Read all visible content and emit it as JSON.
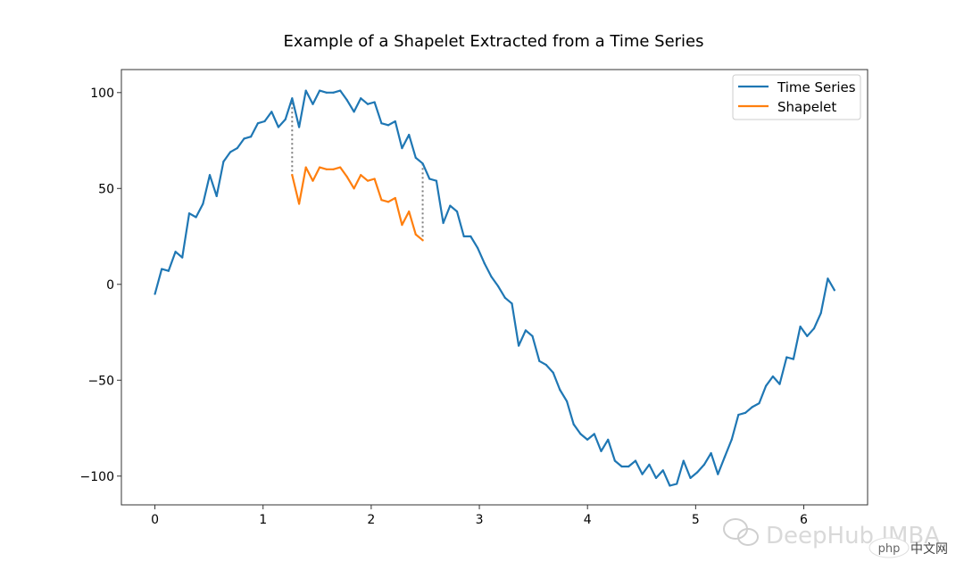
{
  "chart_data": {
    "type": "line",
    "title": "Example of a Shapelet Extracted from a Time Series",
    "xlabel": "",
    "ylabel": "",
    "xlim": [
      -0.31,
      6.59
    ],
    "ylim": [
      -115,
      112
    ],
    "xticks": [
      0,
      1,
      2,
      3,
      4,
      5,
      6
    ],
    "yticks": [
      100,
      50,
      0,
      -50,
      -100
    ],
    "xtick_labels": [
      "0",
      "1",
      "2",
      "3",
      "4",
      "5",
      "6"
    ],
    "ytick_labels": [
      "100",
      "50",
      "0",
      "−50",
      "−100"
    ],
    "grid": false,
    "legend_position": "top-right",
    "series": [
      {
        "name": "Time Series",
        "color": "#1f77b4",
        "x": [
          0.0,
          0.063,
          0.126,
          0.19,
          0.253,
          0.317,
          0.38,
          0.444,
          0.507,
          0.571,
          0.634,
          0.698,
          0.761,
          0.825,
          0.888,
          0.952,
          1.015,
          1.079,
          1.142,
          1.206,
          1.269,
          1.333,
          1.396,
          1.46,
          1.523,
          1.587,
          1.65,
          1.714,
          1.777,
          1.841,
          1.904,
          1.968,
          2.031,
          2.095,
          2.158,
          2.222,
          2.285,
          2.349,
          2.412,
          2.476,
          2.539,
          2.603,
          2.666,
          2.73,
          2.793,
          2.857,
          2.92,
          2.984,
          3.047,
          3.111,
          3.174,
          3.237,
          3.301,
          3.364,
          3.428,
          3.491,
          3.555,
          3.618,
          3.682,
          3.745,
          3.809,
          3.872,
          3.936,
          3.999,
          4.063,
          4.126,
          4.19,
          4.253,
          4.317,
          4.38,
          4.444,
          4.507,
          4.571,
          4.634,
          4.698,
          4.761,
          4.825,
          4.888,
          4.952,
          5.015,
          5.079,
          5.142,
          5.206,
          5.269,
          5.333,
          5.396,
          5.46,
          5.523,
          5.587,
          5.65,
          5.714,
          5.777,
          5.841,
          5.904,
          5.968,
          6.031,
          6.095,
          6.158,
          6.222,
          6.283
        ],
        "y": [
          -5,
          8,
          7,
          17,
          14,
          37,
          35,
          42,
          57,
          46,
          64,
          69,
          71,
          76,
          77,
          84,
          85,
          90,
          82,
          86,
          97,
          82,
          101,
          94,
          101,
          100,
          100,
          101,
          96,
          90,
          97,
          94,
          95,
          84,
          83,
          85,
          71,
          78,
          66,
          63,
          55,
          54,
          32,
          41,
          38,
          25,
          25,
          19,
          11,
          4,
          -1,
          -7,
          -10,
          -32,
          -24,
          -27,
          -40,
          -42,
          -46,
          -55,
          -61,
          -73,
          -78,
          -81,
          -78,
          -87,
          -81,
          -92,
          -95,
          -95,
          -92,
          -99,
          -94,
          -101,
          -97,
          -105,
          -104,
          -92,
          -101,
          -98,
          -94,
          -88,
          -99,
          -90,
          -81,
          -68,
          -67,
          -64,
          -62,
          -53,
          -48,
          -52,
          -38,
          -39,
          -22,
          -27,
          -23,
          -15,
          3,
          -3
        ]
      },
      {
        "name": "Shapelet",
        "color": "#ff7f0e",
        "x": [
          1.269,
          1.333,
          1.396,
          1.46,
          1.523,
          1.587,
          1.65,
          1.714,
          1.777,
          1.841,
          1.904,
          1.968,
          2.031,
          2.095,
          2.158,
          2.222,
          2.285,
          2.349,
          2.412,
          2.476
        ],
        "y": [
          57,
          42,
          61,
          54,
          61,
          60,
          60,
          61,
          56,
          50,
          57,
          54,
          55,
          44,
          43,
          45,
          31,
          38,
          26,
          23
        ]
      }
    ],
    "connectors": [
      {
        "x": 1.269,
        "y_from": 97,
        "y_to": 57
      },
      {
        "x": 2.476,
        "y_from": 63,
        "y_to": 23
      }
    ]
  },
  "watermark": {
    "text": "DeepHub IMBA",
    "badge": "php",
    "badge_suffix": "中文网"
  }
}
